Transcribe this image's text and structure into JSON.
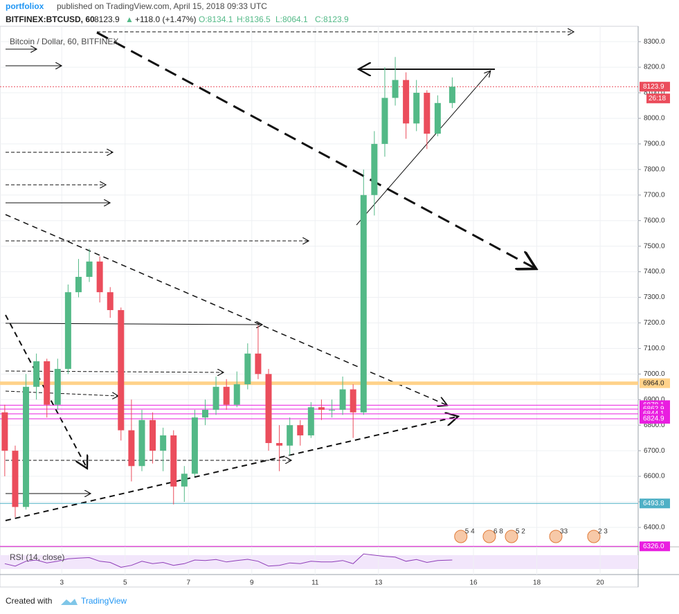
{
  "header": {
    "author": "portfoliox",
    "published": "published on TradingView.com, April 15, 2018 09:33 UTC",
    "symbol": "BITFINEX:BTCUSD, 60",
    "last": "8123.9",
    "arrow": "▲",
    "change": "+118.0 (+1.47%)",
    "ohlc": [
      "O:8134.1",
      "H:8136.5",
      "L:8064.1",
      "C:8123.9"
    ]
  },
  "footer": {
    "created": "Created with",
    "brand": "TradingView"
  },
  "chart_data": {
    "type": "candlestick",
    "title": "Bitcoin / Dollar, 60, BITFINEX",
    "up_color": "#53b987",
    "down_color": "#eb4d5c",
    "xlim": [
      1.05,
      21.2
    ],
    "xticks": [
      3,
      5,
      7,
      9,
      11,
      13,
      16,
      18,
      20
    ],
    "ylim": [
      6324,
      8360
    ],
    "yticks": [
      {
        "value": 6400,
        "label": "6400.0"
      },
      {
        "value": 6500,
        "label": "6500.0"
      },
      {
        "value": 6600,
        "label": "6600.0"
      },
      {
        "value": 6700,
        "label": "6700.0"
      },
      {
        "value": 6800,
        "label": "6800.0"
      },
      {
        "value": 6900,
        "label": "6900.0"
      },
      {
        "value": 7000,
        "label": "7000.0"
      },
      {
        "value": 7100,
        "label": "7100.0"
      },
      {
        "value": 7200,
        "label": "7200.0"
      },
      {
        "value": 7300,
        "label": "7300.0"
      },
      {
        "value": 7400,
        "label": "7400.0"
      },
      {
        "value": 7500,
        "label": "7500.0"
      },
      {
        "value": 7600,
        "label": "7600.0"
      },
      {
        "value": 7700,
        "label": "7700.0"
      },
      {
        "value": 7800,
        "label": "7800.0"
      },
      {
        "value": 7900,
        "label": "7900.0"
      },
      {
        "value": 8000,
        "label": "8000.0"
      },
      {
        "value": 8100,
        "label": "8100.0"
      },
      {
        "value": 8200,
        "label": "8200.0"
      },
      {
        "value": 8300,
        "label": "8300.0"
      }
    ],
    "x": [
      1.2,
      1.53,
      1.87,
      2.2,
      2.53,
      2.87,
      3.2,
      3.53,
      3.87,
      4.2,
      4.53,
      4.87,
      5.2,
      5.53,
      5.87,
      6.2,
      6.53,
      6.87,
      7.2,
      7.53,
      7.87,
      8.2,
      8.53,
      8.87,
      9.2,
      9.53,
      9.87,
      10.2,
      10.53,
      10.87,
      11.2,
      11.53,
      11.87,
      12.2,
      12.53,
      12.87,
      13.2,
      13.53,
      13.87,
      14.2,
      14.53,
      14.87,
      15.33
    ],
    "open": [
      6850,
      6700,
      6480,
      6950,
      7050,
      6880,
      7020,
      7320,
      7380,
      7440,
      7320,
      7250,
      6780,
      6640,
      6820,
      6700,
      6760,
      6560,
      6610,
      6830,
      6860,
      6950,
      6880,
      6960,
      7080,
      7000,
      6730,
      6720,
      6800,
      6760,
      6870,
      6860,
      6860,
      6940,
      6850,
      7700,
      7900,
      8080,
      8150,
      7980,
      8100,
      7940,
      8060
    ],
    "high": [
      6880,
      6720,
      7000,
      7080,
      7060,
      7060,
      7350,
      7450,
      7490,
      7460,
      7340,
      7260,
      6900,
      6860,
      6850,
      6790,
      6780,
      6640,
      6860,
      6900,
      6990,
      6980,
      7010,
      7120,
      7190,
      7020,
      6800,
      6830,
      6820,
      6890,
      6900,
      6900,
      6990,
      6960,
      7800,
      7950,
      8200,
      8240,
      8180,
      8150,
      8110,
      8090,
      8160
    ],
    "low": [
      6600,
      6440,
      6470,
      6900,
      6830,
      6860,
      7000,
      7300,
      7360,
      7280,
      7220,
      6740,
      6580,
      6620,
      6650,
      6620,
      6490,
      6500,
      6600,
      6800,
      6840,
      6860,
      6870,
      6940,
      6980,
      6700,
      6620,
      6680,
      6720,
      6750,
      6820,
      6830,
      6840,
      6750,
      6840,
      7620,
      7850,
      8050,
      7920,
      7950,
      7880,
      7930,
      8040
    ],
    "close": [
      6700,
      6480,
      6950,
      7050,
      6880,
      7020,
      7320,
      7380,
      7440,
      7320,
      7250,
      6780,
      6640,
      6820,
      6700,
      6760,
      6560,
      6610,
      6830,
      6860,
      6950,
      6880,
      6960,
      7080,
      7000,
      6730,
      6720,
      6800,
      6760,
      6870,
      6860,
      6860,
      6940,
      6850,
      7700,
      7900,
      8080,
      8150,
      7980,
      8100,
      7940,
      8060,
      8123.9
    ],
    "levels": [
      {
        "value": 8123.9,
        "label": "8123.9",
        "color": "#eb4d5c"
      },
      {
        "value": 6964,
        "label": "6964.0",
        "color": "#ffd28a"
      },
      {
        "value": 6878.1,
        "label": "6878.1",
        "color": "#e91ee0"
      },
      {
        "value": 6862.9,
        "label": "6862.9",
        "color": "#e91ee0"
      },
      {
        "value": 6844.1,
        "label": "6844.1",
        "color": "#e91ee0"
      },
      {
        "value": 6824.9,
        "label": "6824.9",
        "color": "#e91ee0"
      },
      {
        "value": 6493.8,
        "label": "6493.8",
        "color": "#4fb0c6"
      },
      {
        "value": 6326,
        "label": "6326.0",
        "color": "#e91ee0"
      }
    ],
    "countdown": "26:18",
    "events": [
      {
        "x": 15.6,
        "label": "5 4"
      },
      {
        "x": 16.5,
        "label": "6 8"
      },
      {
        "x": 17.2,
        "label": "5 2"
      },
      {
        "x": 18.6,
        "label": "33"
      },
      {
        "x": 19.8,
        "label": "2 3"
      }
    ],
    "rsi": {
      "label": "RSI (14, close)",
      "ylim": [
        0,
        100
      ],
      "color": "#8e3cb8",
      "values": [
        45,
        35,
        55,
        60,
        48,
        55,
        65,
        68,
        70,
        55,
        50,
        30,
        38,
        55,
        45,
        50,
        38,
        45,
        60,
        58,
        62,
        52,
        58,
        63,
        55,
        35,
        38,
        48,
        45,
        55,
        52,
        52,
        58,
        45,
        85,
        80,
        75,
        72,
        55,
        62,
        50,
        58,
        60
      ]
    }
  }
}
